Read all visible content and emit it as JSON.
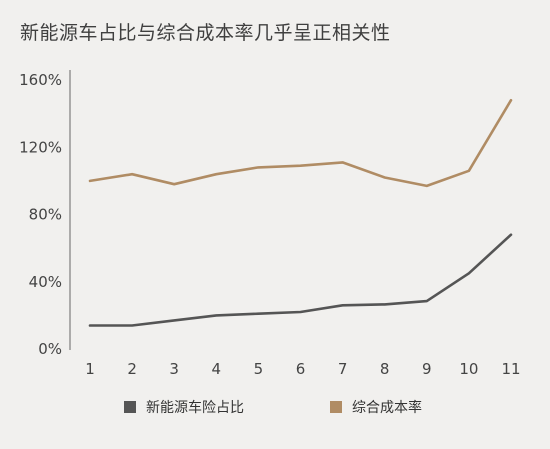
{
  "chart_data": {
    "type": "line",
    "title": "新能源车占比与综合成本率几乎呈正相关性",
    "x": [
      1,
      2,
      3,
      4,
      5,
      6,
      7,
      8,
      9,
      10,
      11
    ],
    "x_tick_labels": [
      "1",
      "2",
      "3",
      "4",
      "5",
      "6",
      "7",
      "8",
      "9",
      "10",
      "11"
    ],
    "y_tick_labels": [
      "0%",
      "40%",
      "80%",
      "120%",
      "160%"
    ],
    "y_ticks": [
      0,
      40,
      80,
      120,
      160
    ],
    "ylim": [
      0,
      160
    ],
    "grid": false,
    "legend_position": "bottom",
    "series": [
      {
        "name": "新能源车险占比",
        "color": "#555555",
        "values": [
          14,
          14,
          17,
          20,
          21,
          22,
          26,
          26.5,
          28.5,
          45,
          68
        ]
      },
      {
        "name": "综合成本率",
        "color": "#b08c64",
        "values": [
          100,
          104,
          98,
          104,
          108,
          109,
          111,
          102,
          97,
          106,
          148
        ]
      }
    ]
  }
}
